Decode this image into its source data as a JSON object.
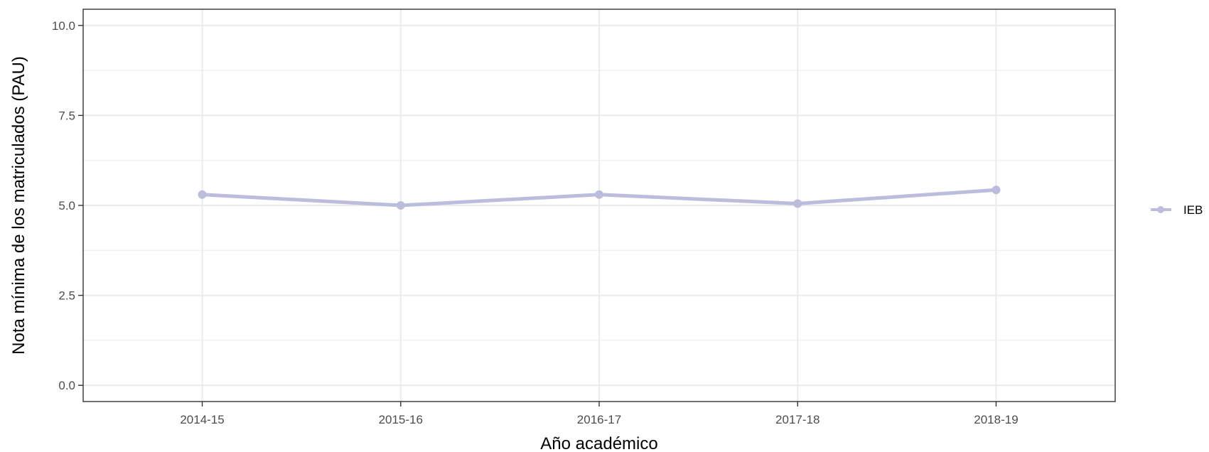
{
  "chart_data": {
    "type": "line",
    "categories": [
      "2014-15",
      "2015-16",
      "2016-17",
      "2017-18",
      "2018-19"
    ],
    "series": [
      {
        "name": "IEB",
        "values": [
          5.3,
          5.0,
          5.3,
          5.05,
          5.43
        ],
        "color": "#bcbddc"
      }
    ],
    "xlabel": "Año académico",
    "ylabel": "Nota mínima de los matriculados (PAU)",
    "ylim": [
      -0.45,
      10.45
    ],
    "yticks": [
      0,
      2.5,
      5,
      7.5,
      10
    ],
    "ytick_labels": [
      "0.0",
      "2.5",
      "5.0",
      "7.5",
      "10.0"
    ],
    "grid": true,
    "legend_position": "right"
  }
}
